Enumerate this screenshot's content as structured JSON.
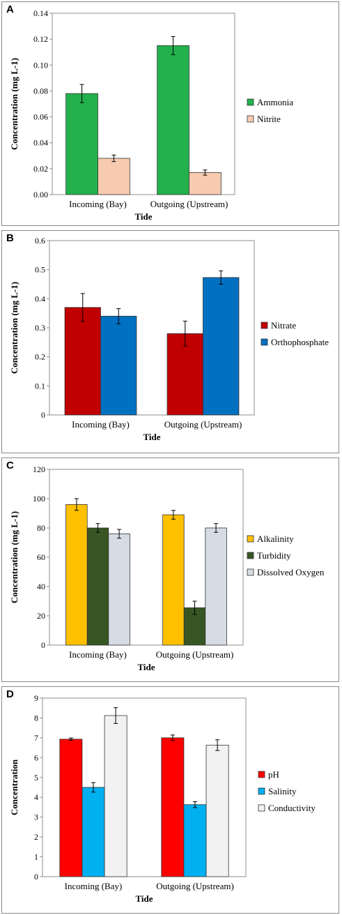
{
  "chart_data": [
    {
      "type": "bar",
      "panel_label": "A",
      "categories": [
        "Incoming (Bay)",
        "Outgoing (Upstream)"
      ],
      "xlabel": "Tide",
      "ylabel": "Concentration (mg L-1)",
      "ylim": [
        0,
        0.14
      ],
      "yticks": [
        "0.00",
        "0.02",
        "0.04",
        "0.06",
        "0.08",
        "0.10",
        "0.12",
        "0.14"
      ],
      "series": [
        {
          "name": "Ammonia",
          "color": "#22b14c",
          "values": [
            0.078,
            0.115
          ],
          "errors": [
            0.007,
            0.007
          ]
        },
        {
          "name": "Nitrite",
          "color": "#f7cbb0",
          "values": [
            0.028,
            0.017
          ],
          "errors": [
            0.0025,
            0.002
          ]
        }
      ],
      "legend": "right"
    },
    {
      "type": "bar",
      "panel_label": "B",
      "categories": [
        "Incoming (Bay)",
        "Outgoing (Upstream)"
      ],
      "xlabel": "Tide",
      "ylabel": "Concentration (mg L-1)",
      "ylim": [
        0,
        0.6
      ],
      "yticks": [
        "0",
        "0.1",
        "0.2",
        "0.3",
        "0.4",
        "0.5",
        "0.6"
      ],
      "series": [
        {
          "name": "Nitrate",
          "color": "#c00000",
          "values": [
            0.37,
            0.28
          ],
          "errors": [
            0.048,
            0.043
          ]
        },
        {
          "name": "Orthophosphate",
          "color": "#0070c0",
          "values": [
            0.34,
            0.473
          ],
          "errors": [
            0.026,
            0.023
          ]
        }
      ],
      "legend": "right"
    },
    {
      "type": "bar",
      "panel_label": "C",
      "categories": [
        "Incoming (Bay)",
        "Outgoing (Upstream)"
      ],
      "xlabel": "Tide",
      "ylabel": "Concentration (mg L-1)",
      "ylim": [
        0,
        120
      ],
      "yticks": [
        "0",
        "20",
        "40",
        "60",
        "80",
        "100",
        "120"
      ],
      "series": [
        {
          "name": "Alkalinity",
          "color": "#ffc000",
          "values": [
            96,
            89
          ],
          "errors": [
            4,
            3
          ]
        },
        {
          "name": "Turbidity",
          "color": "#375623",
          "values": [
            80,
            25.5
          ],
          "errors": [
            3,
            4.5
          ]
        },
        {
          "name": "Dissolved Oxygen",
          "color": "#d6dce4",
          "values": [
            76,
            80
          ],
          "errors": [
            3,
            3
          ]
        }
      ],
      "legend": "right"
    },
    {
      "type": "bar",
      "panel_label": "D",
      "categories": [
        "Incoming (Bay)",
        "Outgoing (Upstream)"
      ],
      "xlabel": "Tide",
      "ylabel": "Concentration",
      "ylim": [
        0,
        9
      ],
      "yticks": [
        "0",
        "1",
        "2",
        "3",
        "4",
        "5",
        "6",
        "7",
        "8",
        "9"
      ],
      "series": [
        {
          "name": "pH",
          "color": "#ff0000",
          "values": [
            6.93,
            7.0
          ],
          "errors": [
            0.06,
            0.14
          ]
        },
        {
          "name": "Salinity",
          "color": "#00b0f0",
          "values": [
            4.5,
            3.63
          ],
          "errors": [
            0.24,
            0.15
          ]
        },
        {
          "name": "Conductivity",
          "color": "#f2f2f2",
          "values": [
            8.12,
            6.63
          ],
          "errors": [
            0.4,
            0.27
          ]
        }
      ],
      "legend": "right"
    }
  ]
}
